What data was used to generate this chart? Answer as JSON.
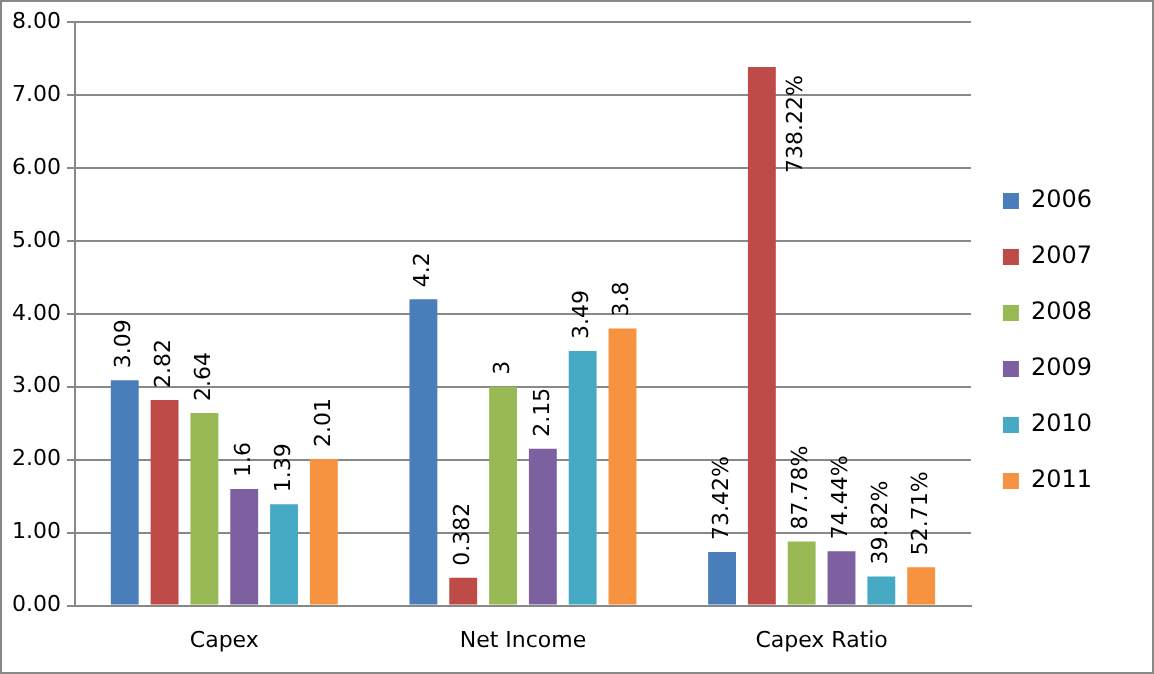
{
  "chart_data": {
    "type": "bar",
    "categories": [
      "Capex",
      "Net Income",
      "Capex Ratio"
    ],
    "series": [
      {
        "name": "2006",
        "color": "#4a7ebb",
        "values": [
          3.09,
          4.2,
          0.7342
        ],
        "value_labels": [
          "3.09",
          "4.2",
          "73.42%"
        ]
      },
      {
        "name": "2007",
        "color": "#be4b48",
        "values": [
          2.82,
          0.382,
          7.3822
        ],
        "value_labels": [
          "2.82",
          "0.382",
          "738.22%"
        ]
      },
      {
        "name": "2008",
        "color": "#98b954",
        "values": [
          2.64,
          3,
          0.8778
        ],
        "value_labels": [
          "2.64",
          "3",
          "87.78%"
        ]
      },
      {
        "name": "2009",
        "color": "#7d60a0",
        "values": [
          1.6,
          2.15,
          0.7444
        ],
        "value_labels": [
          "1.6",
          "2.15",
          "74.44%"
        ]
      },
      {
        "name": "2010",
        "color": "#46aac5",
        "values": [
          1.39,
          3.49,
          0.3982
        ],
        "value_labels": [
          "1.39",
          "3.49",
          "39.82%"
        ]
      },
      {
        "name": "2011",
        "color": "#f69240",
        "values": [
          2.01,
          3.8,
          0.5271
        ],
        "value_labels": [
          "2.01",
          "3.8",
          "52.71%"
        ]
      }
    ],
    "ylim": [
      0,
      8
    ],
    "yticks": [
      {
        "value": 0,
        "label": "0.00"
      },
      {
        "value": 1,
        "label": "1.00"
      },
      {
        "value": 2,
        "label": "2.00"
      },
      {
        "value": 3,
        "label": "3.00"
      },
      {
        "value": 4,
        "label": "4.00"
      },
      {
        "value": 5,
        "label": "5.00"
      },
      {
        "value": 6,
        "label": "6.00"
      },
      {
        "value": 7,
        "label": "7.00"
      },
      {
        "value": 8,
        "label": "8.00"
      }
    ],
    "grid": "y",
    "legend": "right"
  }
}
